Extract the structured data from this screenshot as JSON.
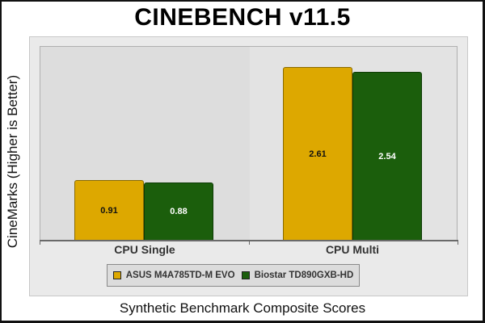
{
  "chart_data": {
    "type": "bar",
    "title": "CINEBENCH v11.5",
    "xlabel": "Synthetic Benchmark Composite Scores",
    "ylabel": "CineMarks (Higher is Better)",
    "categories": [
      "CPU Single",
      "CPU Multi"
    ],
    "series": [
      {
        "name": "ASUS M4A785TD-M EVO",
        "color": "#DDA800",
        "values": [
          0.91,
          2.61
        ]
      },
      {
        "name": "Biostar TD890GXB-HD",
        "color": "#1B5E0C",
        "values": [
          0.88,
          2.54
        ]
      }
    ],
    "ylim": [
      0,
      2.93
    ],
    "grid": false,
    "legend_position": "bottom",
    "data_labels": true
  },
  "labels": {
    "title": "CINEBENCH v11.5",
    "ylabel": "CineMarks (Higher is Better)",
    "xlabel": "Synthetic Benchmark Composite Scores",
    "cat0": "CPU Single",
    "cat1": "CPU Multi",
    "legend0": "ASUS M4A785TD-M EVO",
    "legend1": "Biostar TD890GXB-HD",
    "v00": "0.91",
    "v10": "0.88",
    "v01": "2.61",
    "v11": "2.54"
  }
}
